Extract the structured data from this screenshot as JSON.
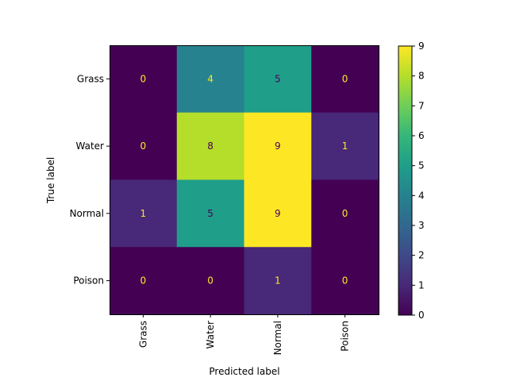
{
  "chart_data": {
    "type": "heatmap",
    "title": "",
    "xlabel": "Predicted label",
    "ylabel": "True label",
    "x_categories": [
      "Grass",
      "Water",
      "Normal",
      "Poison"
    ],
    "y_categories": [
      "Grass",
      "Water",
      "Normal",
      "Poison"
    ],
    "values": [
      [
        0,
        4,
        5,
        0
      ],
      [
        0,
        8,
        9,
        1
      ],
      [
        1,
        5,
        9,
        0
      ],
      [
        0,
        0,
        1,
        0
      ]
    ],
    "colormap": "viridis",
    "colorbar": {
      "range": [
        0,
        9
      ],
      "ticks": [
        "0",
        "1",
        "2",
        "3",
        "4",
        "5",
        "6",
        "7",
        "8",
        "9"
      ]
    },
    "grid": false,
    "legend": "colorbar-right"
  }
}
